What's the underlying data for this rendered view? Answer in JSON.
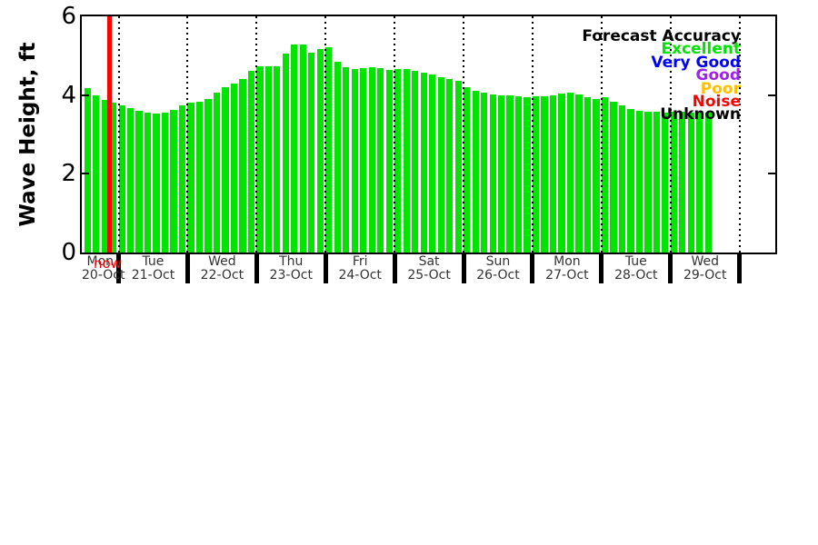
{
  "chart_data": {
    "type": "bar",
    "title": "",
    "ylabel": "Wave Height, ft",
    "xlabel": "",
    "ylim": [
      0,
      6
    ],
    "yticks": [
      "0",
      "2",
      "4",
      "6"
    ],
    "grid": "vertical-dotted-day-boundaries",
    "bar_interval_hours": 3,
    "now_label": "now",
    "now_slot_index": 3,
    "colors": {
      "bar": "#00E400",
      "now_line": "#FF0000",
      "axis": "#000000",
      "tick_label": "#333333",
      "background": "#FFFFFF"
    },
    "days": [
      {
        "day": "Mon",
        "date": "20-Oct",
        "values": [
          4.17,
          3.99,
          3.88,
          3.8
        ]
      },
      {
        "day": "Tue",
        "date": "21-Oct",
        "values": [
          3.73,
          3.66,
          3.6,
          3.55,
          3.52,
          3.56,
          3.63,
          3.73
        ]
      },
      {
        "day": "Wed",
        "date": "22-Oct",
        "values": [
          3.8,
          3.83,
          3.9,
          4.07,
          4.19,
          4.3,
          4.41,
          4.62
        ]
      },
      {
        "day": "Thu",
        "date": "23-Oct",
        "values": [
          4.72,
          4.74,
          4.74,
          5.05,
          5.28,
          5.28,
          5.07,
          5.16
        ]
      },
      {
        "day": "Fri",
        "date": "24-Oct",
        "values": [
          5.22,
          4.84,
          4.7,
          4.66,
          4.69,
          4.71,
          4.69,
          4.63
        ]
      },
      {
        "day": "Sat",
        "date": "25-Oct",
        "values": [
          4.66,
          4.67,
          4.62,
          4.56,
          4.52,
          4.46,
          4.4,
          4.36
        ]
      },
      {
        "day": "Sun",
        "date": "26-Oct",
        "values": [
          4.21,
          4.11,
          4.06,
          4.01,
          3.99,
          3.99,
          3.96,
          3.94
        ]
      },
      {
        "day": "Mon",
        "date": "27-Oct",
        "values": [
          3.96,
          3.98,
          4.0,
          4.03,
          4.06,
          4.01,
          3.94,
          3.89
        ]
      },
      {
        "day": "Tue",
        "date": "28-Oct",
        "values": [
          3.95,
          3.84,
          3.73,
          3.65,
          3.59,
          3.57,
          3.57,
          3.56
        ]
      },
      {
        "day": "Wed",
        "date": "29-Oct",
        "values": [
          3.57,
          3.57,
          3.56,
          3.55,
          3.55
        ]
      }
    ],
    "legend": {
      "position": "upper right",
      "title": "Forecast Accuracy",
      "title_color": "#000000",
      "entries": [
        {
          "label": "Excellent",
          "color": "#00E400"
        },
        {
          "label": "Very Good",
          "color": "#0000FF"
        },
        {
          "label": "Good",
          "color": "#A020F0"
        },
        {
          "label": "Poor",
          "color": "#FFC000"
        },
        {
          "label": "Noise",
          "color": "#FF0000"
        },
        {
          "label": "Unknown",
          "color": "#000000"
        }
      ]
    }
  }
}
